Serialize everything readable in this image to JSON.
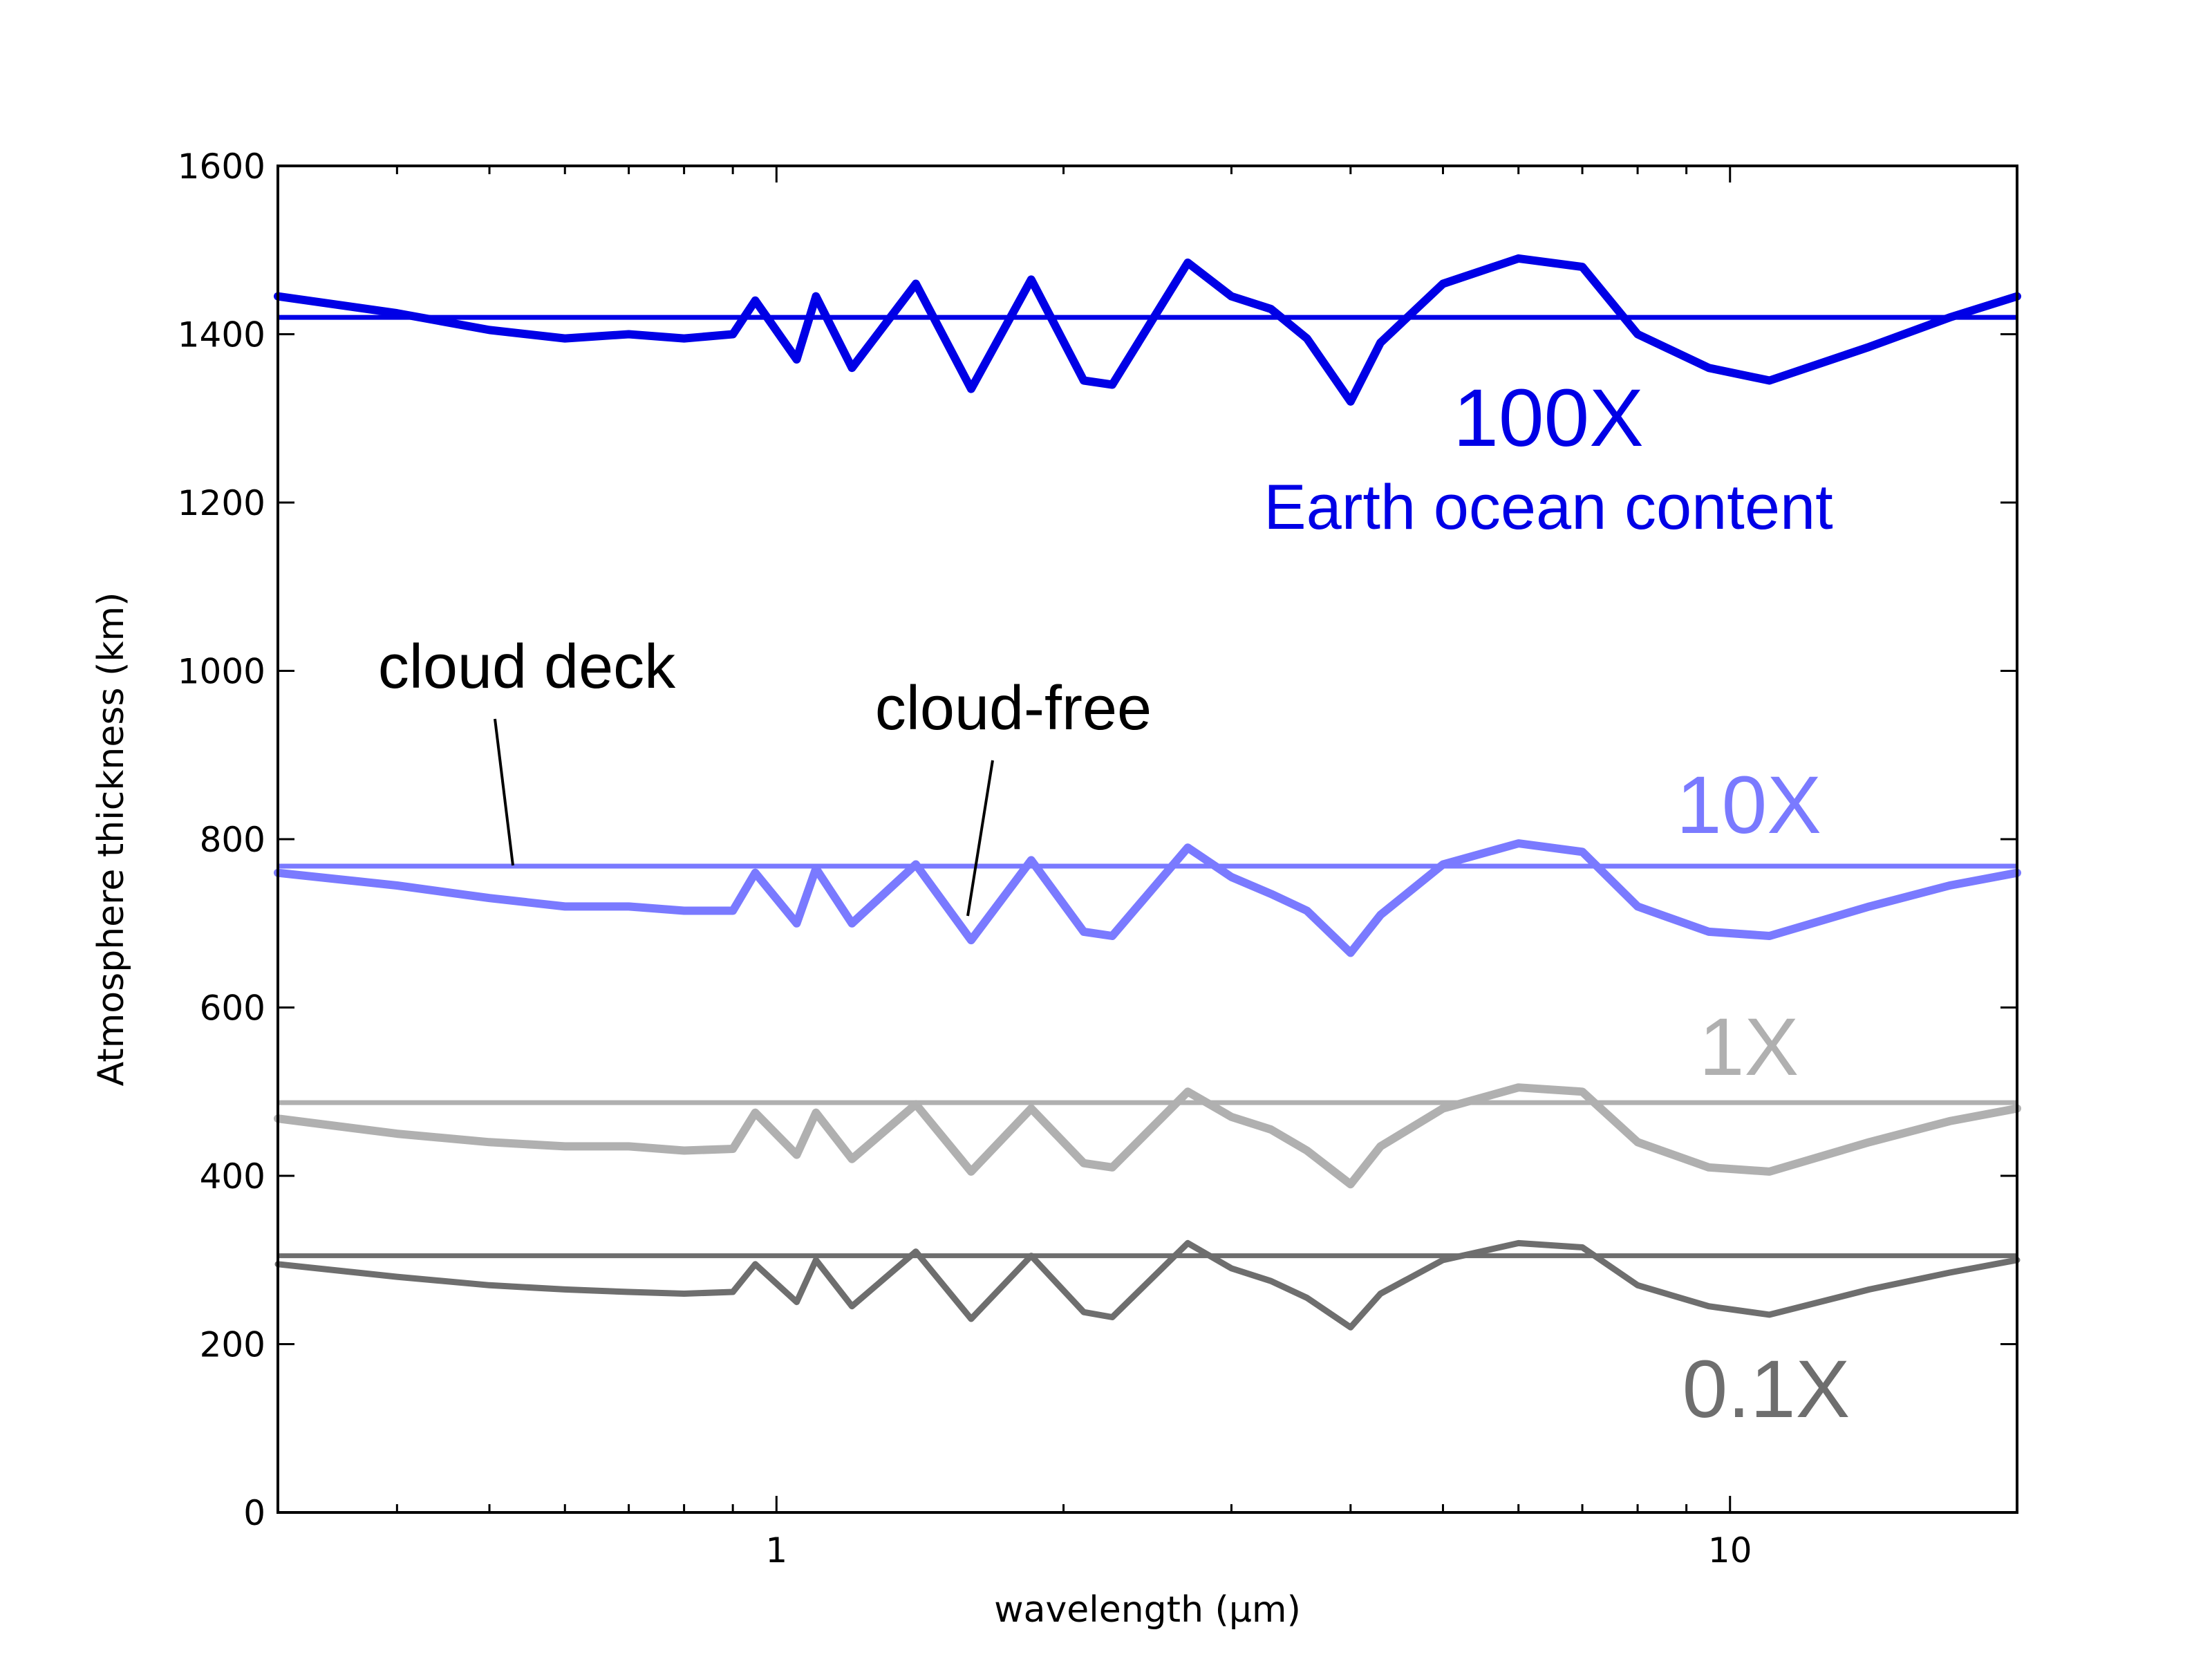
{
  "chart_data": {
    "type": "line",
    "xlabel": "wavelength (μm)",
    "ylabel": "Atmosphere thickness (km)",
    "xscale": "log",
    "xlim": [
      0.3,
      20
    ],
    "ylim": [
      0,
      1600
    ],
    "x_ticks": [
      {
        "value": 1,
        "label": "1"
      },
      {
        "value": 10,
        "label": "10"
      }
    ],
    "y_ticks": [
      {
        "value": 0,
        "label": "0"
      },
      {
        "value": 200,
        "label": "200"
      },
      {
        "value": 400,
        "label": "400"
      },
      {
        "value": 600,
        "label": "600"
      },
      {
        "value": 800,
        "label": "800"
      },
      {
        "value": 1000,
        "label": "1000"
      },
      {
        "value": 1200,
        "label": "1200"
      },
      {
        "value": 1400,
        "label": "1400"
      },
      {
        "value": 1600,
        "label": "1600"
      }
    ],
    "series": [
      {
        "name": "100X",
        "color": "#0000e6",
        "cloud_deck": 1420,
        "x": [
          0.3,
          0.4,
          0.5,
          0.6,
          0.7,
          0.8,
          0.9,
          0.95,
          1.05,
          1.1,
          1.2,
          1.4,
          1.6,
          1.85,
          2.1,
          2.25,
          2.7,
          3.0,
          3.3,
          3.6,
          4.0,
          4.3,
          5.0,
          6.0,
          7.0,
          8.0,
          9.5,
          11.0,
          14.0,
          17.0,
          20.0
        ],
        "y": [
          1445,
          1425,
          1405,
          1395,
          1400,
          1395,
          1400,
          1440,
          1370,
          1445,
          1360,
          1460,
          1335,
          1465,
          1345,
          1340,
          1485,
          1445,
          1430,
          1395,
          1320,
          1390,
          1460,
          1490,
          1480,
          1400,
          1360,
          1345,
          1385,
          1420,
          1445
        ]
      },
      {
        "name": "10X",
        "color": "#7a7aff",
        "cloud_deck": 768,
        "x": [
          0.3,
          0.4,
          0.5,
          0.6,
          0.7,
          0.8,
          0.9,
          0.95,
          1.05,
          1.1,
          1.2,
          1.4,
          1.6,
          1.85,
          2.1,
          2.25,
          2.7,
          3.0,
          3.3,
          3.6,
          4.0,
          4.3,
          5.0,
          6.0,
          7.0,
          8.0,
          9.5,
          11.0,
          14.0,
          17.0,
          20.0
        ],
        "y": [
          760,
          745,
          730,
          720,
          720,
          715,
          715,
          760,
          700,
          765,
          700,
          770,
          680,
          775,
          690,
          685,
          790,
          755,
          735,
          715,
          665,
          710,
          770,
          795,
          785,
          720,
          690,
          685,
          720,
          745,
          760
        ]
      },
      {
        "name": "1X",
        "color": "#b0b0b0",
        "cloud_deck": 487,
        "x": [
          0.3,
          0.4,
          0.5,
          0.6,
          0.7,
          0.8,
          0.9,
          0.95,
          1.05,
          1.1,
          1.2,
          1.4,
          1.6,
          1.85,
          2.1,
          2.25,
          2.7,
          3.0,
          3.3,
          3.6,
          4.0,
          4.3,
          5.0,
          6.0,
          7.0,
          8.0,
          9.5,
          11.0,
          14.0,
          17.0,
          20.0
        ],
        "y": [
          468,
          450,
          440,
          435,
          435,
          430,
          432,
          475,
          425,
          475,
          420,
          485,
          405,
          480,
          415,
          410,
          500,
          470,
          455,
          430,
          390,
          435,
          480,
          505,
          500,
          440,
          410,
          405,
          440,
          465,
          480
        ]
      },
      {
        "name": "0.1X",
        "color": "#6e6e6e",
        "cloud_deck": 305,
        "x": [
          0.3,
          0.4,
          0.5,
          0.6,
          0.7,
          0.8,
          0.9,
          0.95,
          1.05,
          1.1,
          1.2,
          1.4,
          1.6,
          1.85,
          2.1,
          2.25,
          2.7,
          3.0,
          3.3,
          3.6,
          4.0,
          4.3,
          5.0,
          6.0,
          7.0,
          8.0,
          9.5,
          11.0,
          14.0,
          17.0,
          20.0
        ],
        "y": [
          295,
          280,
          270,
          265,
          262,
          260,
          262,
          295,
          250,
          300,
          245,
          310,
          230,
          305,
          238,
          232,
          320,
          290,
          275,
          255,
          220,
          260,
          300,
          320,
          315,
          270,
          245,
          235,
          265,
          285,
          300
        ]
      }
    ],
    "annotations": [
      {
        "text": "100X",
        "color": "#0000e6"
      },
      {
        "text": "Earth ocean content",
        "color": "#0000e6"
      },
      {
        "text": "10X",
        "color": "#7a7aff"
      },
      {
        "text": "1X",
        "color": "#b0b0b0"
      },
      {
        "text": "0.1X",
        "color": "#6e6e6e"
      },
      {
        "text": "cloud deck",
        "color": "#000000"
      },
      {
        "text": "cloud-free",
        "color": "#000000"
      }
    ],
    "grid": false,
    "legend": "none"
  }
}
